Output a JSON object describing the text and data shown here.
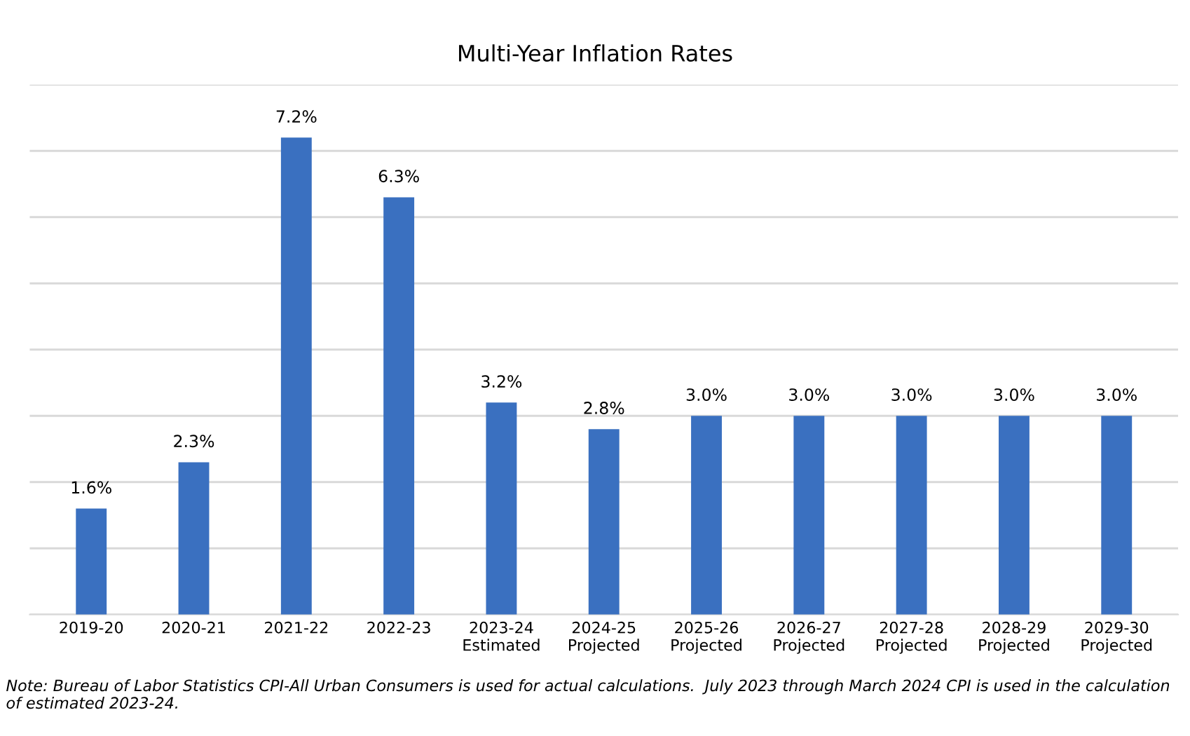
{
  "chart_data": {
    "type": "bar",
    "title": "Multi-Year Inflation Rates",
    "categories": [
      "2019-20",
      "2020-21",
      "2021-22",
      "2022-23",
      "2023-24\nEstimated",
      "2024-25\nProjected",
      "2025-26\nProjected",
      "2026-27\nProjected",
      "2027-28\nProjected",
      "2028-29\nProjected",
      "2029-30\nProjected"
    ],
    "values": [
      1.6,
      2.3,
      7.2,
      6.3,
      3.2,
      2.8,
      3.0,
      3.0,
      3.0,
      3.0,
      3.0
    ],
    "value_labels": [
      "1.6%",
      "2.3%",
      "7.2%",
      "6.3%",
      "3.2%",
      "2.8%",
      "3.0%",
      "3.0%",
      "3.0%",
      "3.0%",
      "3.0%"
    ],
    "color": "#3a70c0",
    "ylim": [
      0,
      8
    ],
    "yticks": [
      {
        "value": 0,
        "label": null
      },
      {
        "value": 1,
        "label": null
      },
      {
        "value": 2,
        "label": null
      },
      {
        "value": 3,
        "label": null
      },
      {
        "value": 4,
        "label": null
      },
      {
        "value": 5,
        "label": null
      },
      {
        "value": 6,
        "label": null
      },
      {
        "value": 7,
        "label": null
      },
      {
        "value": 8,
        "label": null
      }
    ],
    "grid": "y",
    "tick_labels": "x",
    "annotations": [
      "Note: Bureau of Labor Statistics CPI-All Urban Consumers is used for actual calculations.  July 2023 through March 2024 CPI is used in the calculation of estimated 2023-24."
    ]
  }
}
